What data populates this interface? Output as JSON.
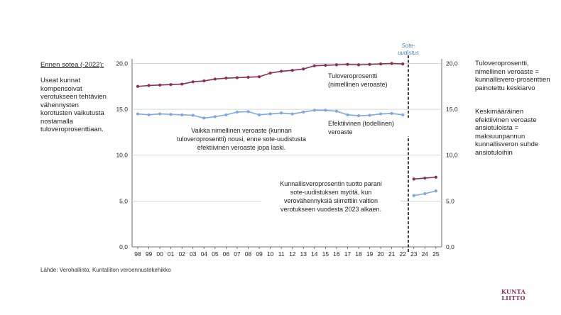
{
  "left_panel": {
    "heading": "Ennen sotea (-2022):",
    "body": "Useat kunnat kompensoivat verotukseen tehtävien vähennysten korotusten vaikutusta nostamalla tuloveroprosenttiaan."
  },
  "right_panel": {
    "text1": "Tuloveroprosentti, nimellinen veroaste = kunnallisvero-prosenttien painotettu keskiarvo",
    "text2": "Keskimääräinen efektiivinen veroaste ansiotuloista = maksuunpannun kunnallisveron suhde ansiotuloihin"
  },
  "source": "Lähde: Verohallinto, Kuntaliiton veroennustekehikko",
  "logo": {
    "line1": "KUNTA",
    "line2": "LIITTO"
  },
  "chart_data": {
    "type": "line",
    "x": [
      "98",
      "99",
      "00",
      "01",
      "02",
      "03",
      "04",
      "05",
      "06",
      "07",
      "08",
      "09",
      "10",
      "11",
      "12",
      "13",
      "14",
      "15",
      "16",
      "17",
      "18",
      "19",
      "20",
      "21",
      "22",
      "23",
      "24",
      "25"
    ],
    "ylim": [
      0,
      20.5
    ],
    "yticks": [
      "0,0",
      "5,0",
      "10,0",
      "15,0",
      "20,0"
    ],
    "ytick_values": [
      0,
      5,
      10,
      15,
      20
    ],
    "grid": true,
    "colors": {
      "nominal": "#8b2c55",
      "effective": "#7ea6e0",
      "grid": "#c8c8c8",
      "reform_line": "#000000",
      "reform_label": "#4a7fb8"
    },
    "reform_label_lines": [
      "Sote-",
      "uudistus"
    ],
    "series": [
      {
        "key": "nominal",
        "values_pre": [
          17.5,
          17.6,
          17.65,
          17.7,
          17.75,
          18.0,
          18.1,
          18.3,
          18.4,
          18.45,
          18.5,
          18.55,
          18.95,
          19.15,
          19.25,
          19.4,
          19.75,
          19.8,
          19.85,
          19.9,
          19.85,
          19.9,
          19.95,
          20.0,
          19.95
        ],
        "values_post": [
          7.4,
          7.5,
          7.6
        ]
      },
      {
        "key": "effective",
        "values_pre": [
          14.5,
          14.4,
          14.5,
          14.45,
          14.4,
          14.35,
          14.05,
          14.2,
          14.4,
          14.7,
          14.75,
          14.4,
          14.5,
          14.6,
          14.5,
          14.7,
          14.9,
          14.9,
          14.8,
          14.4,
          14.3,
          14.35,
          14.5,
          14.55,
          14.4
        ],
        "values_post": [
          5.6,
          5.8,
          6.1
        ]
      }
    ],
    "annotations": {
      "nominal_label": [
        "Tuloveroprosentti",
        "(nimellinen veroaste)"
      ],
      "effective_label": [
        "Efektiivinen (todellinen)",
        "veroaste"
      ],
      "middle_note": [
        "Vaikka nimellinen veroaste (kunnan",
        "tuloveroprosentti) nousi, enne sote-uudistusta",
        "efektiivinen veroaste jopa laski."
      ],
      "bottom_note": [
        "Kunnallisveroprosentin tuotto parani",
        "sote-uudistuksen myötä, kun",
        "verovähennyksiä siirrettiin valtion",
        "verotukseen vuodesta 2023 alkaen."
      ]
    }
  }
}
